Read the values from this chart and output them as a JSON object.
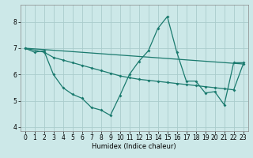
{
  "xlabel": "Humidex (Indice chaleur)",
  "bg_color": "#cce8e8",
  "grid_color": "#aacccc",
  "line_color": "#1a7a6e",
  "xlim": [
    -0.5,
    23.5
  ],
  "ylim": [
    3.85,
    8.65
  ],
  "yticks": [
    4,
    5,
    6,
    7,
    8
  ],
  "xtick_labels": [
    "0",
    "1",
    "2",
    "3",
    "4",
    "5",
    "6",
    "7",
    "8",
    "9",
    "10",
    "11",
    "12",
    "13",
    "14",
    "15",
    "16",
    "17",
    "18",
    "19",
    "20",
    "21",
    "22",
    "23"
  ],
  "xticks": [
    0,
    1,
    2,
    3,
    4,
    5,
    6,
    7,
    8,
    9,
    10,
    11,
    12,
    13,
    14,
    15,
    16,
    17,
    18,
    19,
    20,
    21,
    22,
    23
  ],
  "line1_x": [
    0,
    1,
    2,
    3,
    4,
    5,
    6,
    7,
    8,
    9,
    10,
    11,
    12,
    13,
    14,
    15,
    16,
    17,
    18,
    19,
    20,
    21,
    22,
    23
  ],
  "line1_y": [
    7.0,
    6.85,
    6.9,
    6.0,
    5.5,
    5.25,
    5.1,
    4.75,
    4.65,
    4.45,
    5.2,
    6.0,
    6.5,
    6.9,
    7.75,
    8.2,
    6.85,
    5.75,
    5.75,
    5.3,
    5.35,
    4.85,
    6.45,
    6.45
  ],
  "line2_x": [
    0,
    2,
    3,
    4,
    5,
    6,
    7,
    8,
    9,
    10,
    11,
    12,
    13,
    14,
    15,
    16,
    17,
    18,
    19,
    20,
    21,
    22,
    23
  ],
  "line2_y": [
    7.0,
    6.85,
    6.65,
    6.55,
    6.45,
    6.35,
    6.25,
    6.15,
    6.05,
    5.95,
    5.88,
    5.82,
    5.78,
    5.74,
    5.7,
    5.66,
    5.62,
    5.58,
    5.54,
    5.5,
    5.46,
    5.42,
    6.4
  ],
  "line3_x": [
    0,
    23
  ],
  "line3_y": [
    7.0,
    6.4
  ]
}
